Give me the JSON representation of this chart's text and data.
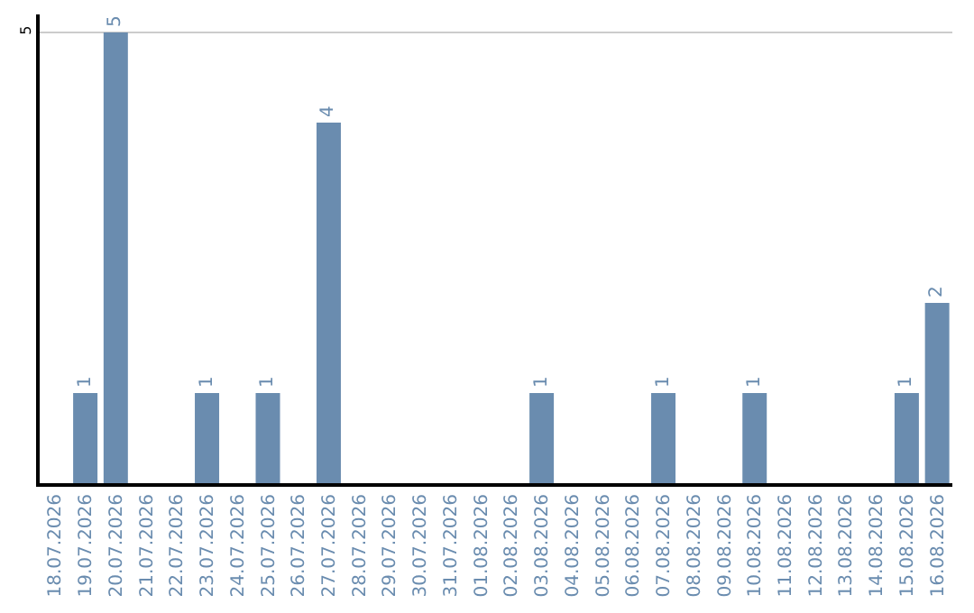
{
  "chart_data": {
    "type": "bar",
    "categories": [
      "18.07.2026",
      "19.07.2026",
      "20.07.2026",
      "21.07.2026",
      "22.07.2026",
      "23.07.2026",
      "24.07.2026",
      "25.07.2026",
      "26.07.2026",
      "27.07.2026",
      "28.07.2026",
      "29.07.2026",
      "30.07.2026",
      "31.07.2026",
      "01.08.2026",
      "02.08.2026",
      "03.08.2026",
      "04.08.2026",
      "05.08.2026",
      "06.08.2026",
      "07.08.2026",
      "08.08.2026",
      "09.08.2026",
      "10.08.2026",
      "11.08.2026",
      "12.08.2026",
      "13.08.2026",
      "14.08.2026",
      "15.08.2026",
      "16.08.2026"
    ],
    "values": [
      null,
      1,
      5,
      null,
      null,
      1,
      null,
      1,
      null,
      4,
      null,
      null,
      null,
      null,
      null,
      null,
      1,
      null,
      null,
      null,
      1,
      null,
      null,
      1,
      null,
      null,
      null,
      null,
      1,
      2
    ],
    "color": "#6a8caf",
    "ylim": [
      0,
      5.2
    ],
    "yticks": [
      5
    ],
    "grid": "y",
    "data_labels": true,
    "legend": false
  }
}
